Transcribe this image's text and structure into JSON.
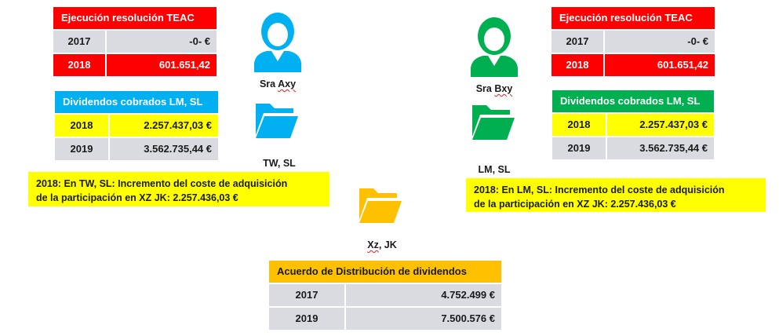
{
  "left_teac": {
    "title": "Ejecución resolución TEAC",
    "rows": [
      {
        "year": "2017",
        "value": "-0- €"
      },
      {
        "year": "2018",
        "value": "601.651,42"
      }
    ]
  },
  "left_dividends": {
    "title": "Dividendos cobrados LM, SL",
    "rows": [
      {
        "year": "2018",
        "value": "2.257.437,03 €"
      },
      {
        "year": "2019",
        "value": "3.562.735,44 €"
      }
    ]
  },
  "right_teac": {
    "title": "Ejecución resolución TEAC",
    "rows": [
      {
        "year": "2017",
        "value": "-0- €"
      },
      {
        "year": "2018",
        "value": "601.651,42"
      }
    ]
  },
  "right_dividends": {
    "title": "Dividendos cobrados LM, SL",
    "rows": [
      {
        "year": "2018",
        "value": "2.257.437,03 €"
      },
      {
        "year": "2019",
        "value": "3.562.735,44 €"
      }
    ]
  },
  "persons": {
    "left": {
      "name_prefix": "Sra ",
      "name_rest": "Axy",
      "color": "#00b0f0"
    },
    "right": {
      "name_prefix": "Sra ",
      "name_rest": "Bxy",
      "color": "#00b050"
    }
  },
  "folders": {
    "tw": {
      "label": "TW, SL",
      "color": "#00b0f0"
    },
    "lm": {
      "label": "LM, SL",
      "color": "#00b050"
    },
    "xz": {
      "label_rest": ", JK",
      "label_prefix": "Xz",
      "color": "#ffc000"
    }
  },
  "notes": {
    "left": {
      "line1": "2018: En TW, SL: Incremento del coste de adquisición",
      "line2": "de la  participación en  XZ JK: 2.257.436,03 €"
    },
    "right": {
      "line1": "2018: En LM, SL: Incremento del coste de adquisición",
      "line2": "de la  participación en  XZ JK: 2.257.436,03 €"
    }
  },
  "agreement": {
    "title": "Acuerdo de Distribución de dividendos",
    "rows": [
      {
        "year": "2017",
        "value": "4.752.499 €"
      },
      {
        "year": "2019",
        "value": "7.500.576 €"
      }
    ]
  }
}
